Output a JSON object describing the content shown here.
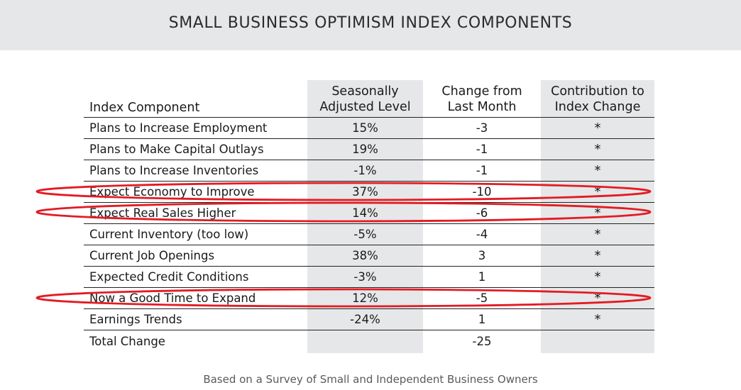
{
  "header": {
    "title": "SMALL BUSINESS OPTIMISM INDEX COMPONENTS"
  },
  "colors": {
    "banner": "#e6e7e8",
    "shaded_column": "#e6e7e8",
    "highlight_ellipse": "#e31b23"
  },
  "chart_data": {
    "type": "table",
    "title": "SMALL BUSINESS OPTIMISM INDEX COMPONENTS",
    "columns": [
      {
        "lines": [
          "",
          "Index Component"
        ]
      },
      {
        "lines": [
          "Seasonally",
          "Adjusted Level"
        ]
      },
      {
        "lines": [
          "Change from",
          "Last Month"
        ]
      },
      {
        "lines": [
          "Contribution to",
          "Index Change"
        ]
      }
    ],
    "rows": [
      {
        "component": "Plans to Increase Employment",
        "level": "15%",
        "change": "-3",
        "contribution": "*",
        "highlighted": false
      },
      {
        "component": "Plans to Make Capital Outlays",
        "level": "19%",
        "change": "-1",
        "contribution": "*",
        "highlighted": false
      },
      {
        "component": "Plans to Increase Inventories",
        "level": "-1%",
        "change": "-1",
        "contribution": "*",
        "highlighted": false
      },
      {
        "component": "Expect Economy to Improve",
        "level": "37%",
        "change": "-10",
        "contribution": "*",
        "highlighted": true
      },
      {
        "component": "Expect Real Sales Higher",
        "level": "14%",
        "change": "-6",
        "contribution": "*",
        "highlighted": true
      },
      {
        "component": "Current Inventory (too low)",
        "level": "-5%",
        "change": "-4",
        "contribution": "*",
        "highlighted": false
      },
      {
        "component": "Current Job Openings",
        "level": "38%",
        "change": "3",
        "contribution": "*",
        "highlighted": false
      },
      {
        "component": "Expected Credit Conditions",
        "level": "-3%",
        "change": "1",
        "contribution": "*",
        "highlighted": false
      },
      {
        "component": "Now a Good Time to Expand",
        "level": "12%",
        "change": "-5",
        "contribution": "*",
        "highlighted": true
      },
      {
        "component": "Earnings Trends",
        "level": "-24%",
        "change": "1",
        "contribution": "*",
        "highlighted": false
      }
    ],
    "total": {
      "label": "Total Change",
      "change": "-25"
    }
  },
  "footer": {
    "caption": "Based on a Survey of Small and Independent Business Owners"
  }
}
